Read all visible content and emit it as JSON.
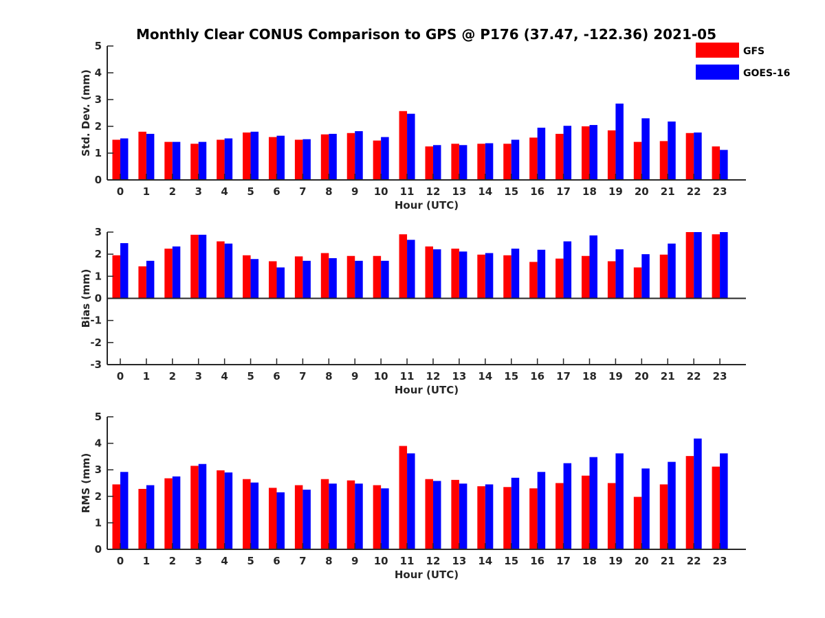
{
  "figure_title": "Monthly Clear CONUS Comparison to GPS @ P176 (37.47, -122.36) 2021-05",
  "chart_data": [
    {
      "type": "bar",
      "categories": [
        "0",
        "1",
        "2",
        "3",
        "4",
        "5",
        "6",
        "7",
        "8",
        "9",
        "10",
        "11",
        "12",
        "13",
        "14",
        "15",
        "16",
        "17",
        "18",
        "19",
        "20",
        "21",
        "22",
        "23"
      ],
      "ylabel": "Std. Dev. (mm)",
      "xlabel": "Hour (UTC)",
      "ylim": [
        0,
        5
      ],
      "yticks": [
        0,
        1,
        2,
        3,
        4,
        5
      ],
      "series": [
        {
          "name": "GFS",
          "color": "#ff0000",
          "values": [
            1.5,
            1.8,
            1.42,
            1.35,
            1.5,
            1.77,
            1.6,
            1.5,
            1.7,
            1.75,
            1.47,
            2.57,
            1.25,
            1.35,
            1.35,
            1.35,
            1.58,
            1.72,
            2.0,
            1.85,
            1.42,
            1.45,
            1.75,
            1.25
          ]
        },
        {
          "name": "GOES-16",
          "color": "#0000ff",
          "values": [
            1.55,
            1.72,
            1.42,
            1.42,
            1.55,
            1.8,
            1.65,
            1.52,
            1.72,
            1.82,
            1.6,
            2.47,
            1.3,
            1.3,
            1.37,
            1.5,
            1.95,
            2.02,
            2.05,
            2.85,
            2.3,
            2.18,
            1.77,
            1.12
          ]
        }
      ]
    },
    {
      "type": "bar",
      "categories": [
        "0",
        "1",
        "2",
        "3",
        "4",
        "5",
        "6",
        "7",
        "8",
        "9",
        "10",
        "11",
        "12",
        "13",
        "14",
        "15",
        "16",
        "17",
        "18",
        "19",
        "20",
        "21",
        "22",
        "23"
      ],
      "ylabel": "Bias (mm)",
      "xlabel": "Hour (UTC)",
      "ylim": [
        -3,
        3
      ],
      "yticks": [
        -3,
        -2,
        -1,
        0,
        1,
        2,
        3
      ],
      "series": [
        {
          "name": "GFS",
          "color": "#ff0000",
          "values": [
            1.95,
            1.45,
            2.25,
            2.88,
            2.58,
            1.95,
            1.68,
            1.9,
            2.05,
            1.92,
            1.92,
            2.9,
            2.35,
            2.25,
            1.98,
            1.95,
            1.65,
            1.8,
            1.92,
            1.68,
            1.4,
            1.98,
            3.0,
            2.9
          ]
        },
        {
          "name": "GOES-16",
          "color": "#0000ff",
          "values": [
            2.5,
            1.7,
            2.35,
            2.88,
            2.48,
            1.78,
            1.4,
            1.7,
            1.82,
            1.7,
            1.7,
            2.65,
            2.22,
            2.12,
            2.05,
            2.25,
            2.2,
            2.58,
            2.85,
            2.22,
            2.0,
            2.48,
            3.0,
            3.0
          ]
        }
      ]
    },
    {
      "type": "bar",
      "categories": [
        "0",
        "1",
        "2",
        "3",
        "4",
        "5",
        "6",
        "7",
        "8",
        "9",
        "10",
        "11",
        "12",
        "13",
        "14",
        "15",
        "16",
        "17",
        "18",
        "19",
        "20",
        "21",
        "22",
        "23"
      ],
      "ylabel": "RMS (mm)",
      "xlabel": "Hour (UTC)",
      "ylim": [
        0,
        5
      ],
      "yticks": [
        0,
        1,
        2,
        3,
        4,
        5
      ],
      "series": [
        {
          "name": "GFS",
          "color": "#ff0000",
          "values": [
            2.45,
            2.28,
            2.68,
            3.15,
            2.98,
            2.65,
            2.32,
            2.42,
            2.65,
            2.6,
            2.42,
            3.9,
            2.65,
            2.62,
            2.38,
            2.35,
            2.3,
            2.5,
            2.78,
            2.5,
            1.98,
            2.45,
            3.52,
            3.12
          ]
        },
        {
          "name": "GOES-16",
          "color": "#0000ff",
          "values": [
            2.92,
            2.42,
            2.75,
            3.22,
            2.9,
            2.52,
            2.15,
            2.25,
            2.48,
            2.48,
            2.3,
            3.62,
            2.58,
            2.48,
            2.45,
            2.7,
            2.92,
            3.25,
            3.48,
            3.62,
            3.05,
            3.3,
            4.18,
            3.62
          ]
        }
      ]
    }
  ],
  "legend": {
    "placement": "top-right",
    "items": [
      {
        "label": "GFS",
        "color": "#ff0000"
      },
      {
        "label": "GOES-16",
        "color": "#0000ff"
      }
    ]
  }
}
